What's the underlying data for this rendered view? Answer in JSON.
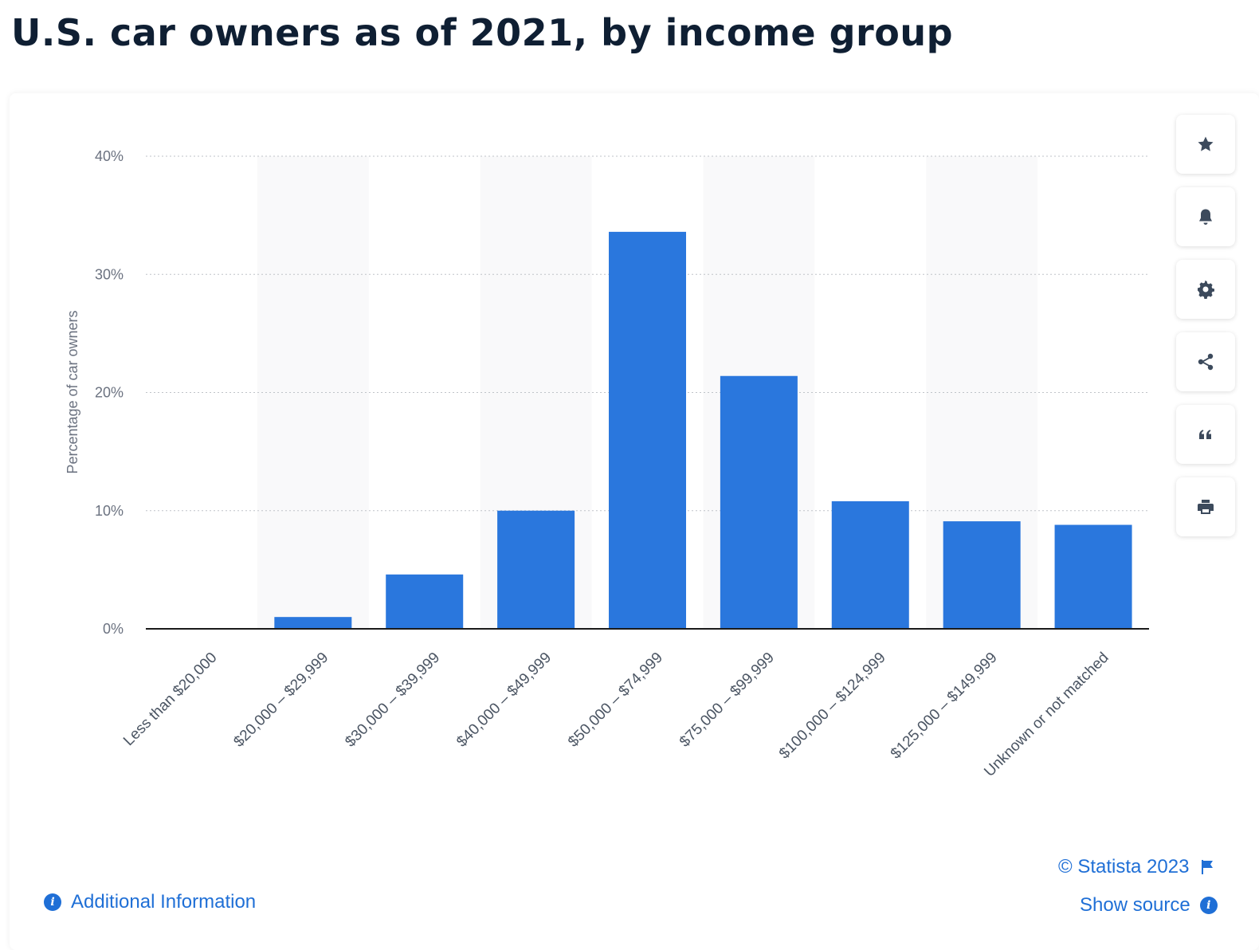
{
  "header": {
    "title": "U.S. car owners as of 2021, by income group"
  },
  "chart_data": {
    "type": "bar",
    "title": "U.S. car owners as of 2021, by income group",
    "xlabel": "",
    "ylabel": "Percentage of car owners",
    "categories": [
      "Less than $20,000",
      "$20,000 – $29,999",
      "$30,000 – $39,999",
      "$40,000 – $49,999",
      "$50,000 – $74,999",
      "$75,000 – $99,999",
      "$100,000 – $124,999",
      "$125,000 – $149,999",
      "Unknown or not matched"
    ],
    "values": [
      0,
      1,
      4.6,
      10,
      33.6,
      21.4,
      10.8,
      9.1,
      8.8
    ],
    "ylim": [
      0,
      40
    ],
    "yticks": [
      0,
      10,
      20,
      30,
      40
    ],
    "ytick_labels": [
      "0%",
      "10%",
      "20%",
      "30%",
      "40%"
    ],
    "grid": true,
    "bar_color": "#2a77dd"
  },
  "toolbar": {
    "items": [
      {
        "name": "star-icon",
        "label": "favorite"
      },
      {
        "name": "bell-icon",
        "label": "notify"
      },
      {
        "name": "gear-icon",
        "label": "settings"
      },
      {
        "name": "share-icon",
        "label": "share"
      },
      {
        "name": "quote-icon",
        "label": "cite"
      },
      {
        "name": "print-icon",
        "label": "print"
      }
    ]
  },
  "footer": {
    "copyright": "© Statista 2023",
    "show_source": "Show source",
    "additional_info": "Additional Information"
  },
  "colors": {
    "accent": "#1f6fd6",
    "bar": "#2a77dd",
    "title": "#0f1f33"
  }
}
